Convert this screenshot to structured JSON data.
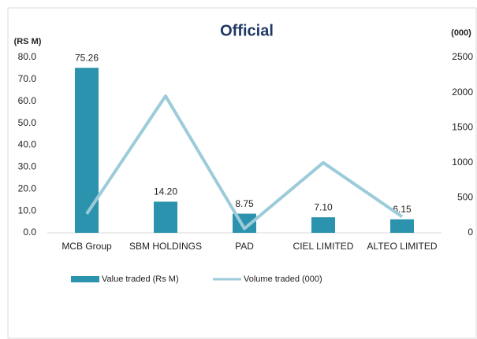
{
  "chart_data": {
    "type": "bar",
    "title": "Official",
    "ylabel": "(RS M)",
    "y2label": "(000)",
    "categories": [
      "MCB Group",
      "SBM HOLDINGS",
      "PAD",
      "CIEL LIMITED",
      "ALTEO LIMITED"
    ],
    "series": [
      {
        "name": "Value traded (Rs M)",
        "type": "bar",
        "color": "#2b93ad",
        "values": [
          75.26,
          14.2,
          8.75,
          7.1,
          6.15
        ],
        "value_labels": [
          "75.26",
          "14.20",
          "8.75",
          "7.10",
          "6.15"
        ]
      },
      {
        "name": "Volume traded (000)",
        "type": "line",
        "color": "#9ccbd9",
        "axis": "y2",
        "values": [
          270,
          1950,
          60,
          1000,
          230
        ]
      }
    ],
    "ylim": [
      0,
      80
    ],
    "yticks": [
      {
        "value": 0,
        "label": "0.0"
      },
      {
        "value": 10,
        "label": "10.0"
      },
      {
        "value": 20,
        "label": "20.0"
      },
      {
        "value": 30,
        "label": "30.0"
      },
      {
        "value": 40,
        "label": "40.0"
      },
      {
        "value": 50,
        "label": "50.0"
      },
      {
        "value": 60,
        "label": "60.0"
      },
      {
        "value": 70,
        "label": "70.0"
      },
      {
        "value": 80,
        "label": "80.0"
      }
    ],
    "y2lim": [
      0,
      2500
    ],
    "y2ticks": [
      0,
      500,
      1000,
      1500,
      2000,
      2500
    ],
    "legend": "bottom"
  }
}
